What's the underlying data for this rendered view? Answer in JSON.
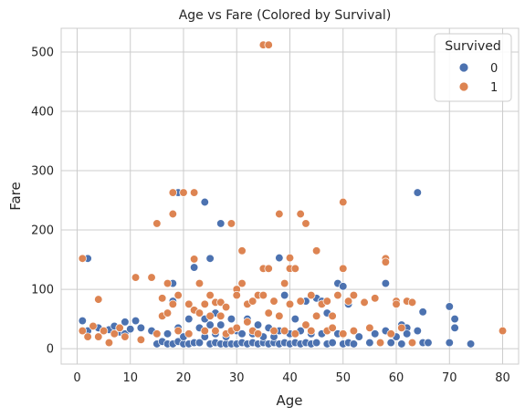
{
  "chart_data": {
    "type": "scatter",
    "title": "Age vs Fare (Colored by Survival)",
    "xlabel": "Age",
    "ylabel": "Fare",
    "xlim": [
      -3,
      83
    ],
    "ylim": [
      -26,
      540
    ],
    "xticks": [
      0,
      10,
      20,
      30,
      40,
      50,
      60,
      70,
      80
    ],
    "yticks": [
      0,
      100,
      200,
      300,
      400,
      500
    ],
    "grid": true,
    "legend": {
      "title": "Survived",
      "placement": "top-right"
    },
    "series": [
      {
        "name": "0",
        "color": "#4c72b0",
        "points": [
          [
            1,
            47
          ],
          [
            2,
            152
          ],
          [
            2,
            30
          ],
          [
            4,
            35
          ],
          [
            5,
            30
          ],
          [
            6,
            32
          ],
          [
            7,
            38
          ],
          [
            8,
            28
          ],
          [
            8,
            35
          ],
          [
            9,
            45
          ],
          [
            9,
            25
          ],
          [
            10,
            33
          ],
          [
            11,
            47
          ],
          [
            12,
            35
          ],
          [
            14,
            30
          ],
          [
            15,
            8
          ],
          [
            16,
            12
          ],
          [
            17,
            8
          ],
          [
            17,
            25
          ],
          [
            18,
            110
          ],
          [
            18,
            8
          ],
          [
            18,
            80
          ],
          [
            19,
            263
          ],
          [
            19,
            35
          ],
          [
            19,
            12
          ],
          [
            20,
            8
          ],
          [
            20,
            20
          ],
          [
            21,
            8
          ],
          [
            21,
            50
          ],
          [
            21,
            75
          ],
          [
            22,
            137
          ],
          [
            22,
            10
          ],
          [
            23,
            10
          ],
          [
            23,
            35
          ],
          [
            24,
            247
          ],
          [
            24,
            50
          ],
          [
            24,
            20
          ],
          [
            25,
            152
          ],
          [
            25,
            8
          ],
          [
            25,
            40
          ],
          [
            26,
            10
          ],
          [
            26,
            25
          ],
          [
            26,
            60
          ],
          [
            27,
            211
          ],
          [
            27,
            8
          ],
          [
            27,
            40
          ],
          [
            28,
            8
          ],
          [
            28,
            20
          ],
          [
            29,
            8
          ],
          [
            29,
            50
          ],
          [
            30,
            8
          ],
          [
            30,
            30
          ],
          [
            31,
            10
          ],
          [
            31,
            25
          ],
          [
            32,
            8
          ],
          [
            32,
            50
          ],
          [
            33,
            10
          ],
          [
            33,
            25
          ],
          [
            34,
            8
          ],
          [
            34,
            40
          ],
          [
            35,
            10
          ],
          [
            35,
            20
          ],
          [
            36,
            8
          ],
          [
            36,
            35
          ],
          [
            37,
            10
          ],
          [
            37,
            20
          ],
          [
            38,
            153
          ],
          [
            38,
            8
          ],
          [
            38,
            30
          ],
          [
            39,
            10
          ],
          [
            39,
            90
          ],
          [
            40,
            8
          ],
          [
            40,
            25
          ],
          [
            41,
            10
          ],
          [
            41,
            50
          ],
          [
            42,
            8
          ],
          [
            42,
            30
          ],
          [
            43,
            10
          ],
          [
            43,
            80
          ],
          [
            44,
            8
          ],
          [
            44,
            25
          ],
          [
            45,
            85
          ],
          [
            45,
            10
          ],
          [
            46,
            80
          ],
          [
            46,
            25
          ],
          [
            47,
            8
          ],
          [
            47,
            60
          ],
          [
            48,
            10
          ],
          [
            48,
            35
          ],
          [
            49,
            110
          ],
          [
            49,
            25
          ],
          [
            50,
            8
          ],
          [
            50,
            105
          ],
          [
            51,
            10
          ],
          [
            51,
            75
          ],
          [
            52,
            8
          ],
          [
            53,
            20
          ],
          [
            55,
            10
          ],
          [
            56,
            25
          ],
          [
            57,
            10
          ],
          [
            58,
            110
          ],
          [
            58,
            30
          ],
          [
            59,
            10
          ],
          [
            60,
            20
          ],
          [
            61,
            40
          ],
          [
            61,
            8
          ],
          [
            62,
            35
          ],
          [
            62,
            25
          ],
          [
            64,
            263
          ],
          [
            64,
            30
          ],
          [
            65,
            10
          ],
          [
            65,
            62
          ],
          [
            66,
            10
          ],
          [
            70,
            71
          ],
          [
            70,
            10
          ],
          [
            71,
            50
          ],
          [
            71,
            35
          ],
          [
            74,
            8
          ]
        ]
      },
      {
        "name": "1",
        "color": "#dd8452",
        "points": [
          [
            1,
            152
          ],
          [
            1,
            30
          ],
          [
            2,
            20
          ],
          [
            3,
            38
          ],
          [
            4,
            83
          ],
          [
            4,
            20
          ],
          [
            5,
            30
          ],
          [
            6,
            10
          ],
          [
            7,
            25
          ],
          [
            8,
            35
          ],
          [
            9,
            20
          ],
          [
            11,
            120
          ],
          [
            12,
            15
          ],
          [
            14,
            120
          ],
          [
            15,
            211
          ],
          [
            15,
            25
          ],
          [
            16,
            85
          ],
          [
            16,
            55
          ],
          [
            17,
            110
          ],
          [
            17,
            60
          ],
          [
            18,
            263
          ],
          [
            18,
            227
          ],
          [
            18,
            75
          ],
          [
            19,
            90
          ],
          [
            19,
            30
          ],
          [
            20,
            263
          ],
          [
            21,
            75
          ],
          [
            21,
            25
          ],
          [
            22,
            263
          ],
          [
            22,
            151
          ],
          [
            22,
            65
          ],
          [
            23,
            110
          ],
          [
            23,
            60
          ],
          [
            24,
            75
          ],
          [
            24,
            30
          ],
          [
            25,
            90
          ],
          [
            25,
            55
          ],
          [
            26,
            78
          ],
          [
            26,
            30
          ],
          [
            27,
            78
          ],
          [
            27,
            55
          ],
          [
            28,
            70
          ],
          [
            28,
            25
          ],
          [
            29,
            211
          ],
          [
            29,
            30
          ],
          [
            30,
            100
          ],
          [
            30,
            90
          ],
          [
            30,
            35
          ],
          [
            31,
            165
          ],
          [
            31,
            110
          ],
          [
            32,
            75
          ],
          [
            32,
            45
          ],
          [
            33,
            80
          ],
          [
            33,
            30
          ],
          [
            34,
            90
          ],
          [
            34,
            25
          ],
          [
            35,
            135
          ],
          [
            35,
            512
          ],
          [
            35,
            90
          ],
          [
            36,
            512
          ],
          [
            36,
            135
          ],
          [
            36,
            60
          ],
          [
            37,
            80
          ],
          [
            37,
            30
          ],
          [
            38,
            227
          ],
          [
            38,
            55
          ],
          [
            39,
            110
          ],
          [
            39,
            30
          ],
          [
            40,
            153
          ],
          [
            40,
            135
          ],
          [
            40,
            75
          ],
          [
            41,
            135
          ],
          [
            41,
            25
          ],
          [
            42,
            227
          ],
          [
            42,
            80
          ],
          [
            43,
            211
          ],
          [
            43,
            40
          ],
          [
            44,
            90
          ],
          [
            44,
            30
          ],
          [
            45,
            165
          ],
          [
            45,
            55
          ],
          [
            46,
            75
          ],
          [
            47,
            80
          ],
          [
            47,
            30
          ],
          [
            48,
            55
          ],
          [
            48,
            35
          ],
          [
            49,
            90
          ],
          [
            50,
            247
          ],
          [
            50,
            135
          ],
          [
            50,
            25
          ],
          [
            51,
            80
          ],
          [
            52,
            90
          ],
          [
            52,
            30
          ],
          [
            54,
            78
          ],
          [
            55,
            35
          ],
          [
            56,
            85
          ],
          [
            57,
            10
          ],
          [
            58,
            152
          ],
          [
            58,
            146
          ],
          [
            59,
            25
          ],
          [
            60,
            80
          ],
          [
            60,
            75
          ],
          [
            61,
            35
          ],
          [
            62,
            80
          ],
          [
            63,
            78
          ],
          [
            63,
            10
          ],
          [
            80,
            30
          ]
        ]
      }
    ]
  }
}
